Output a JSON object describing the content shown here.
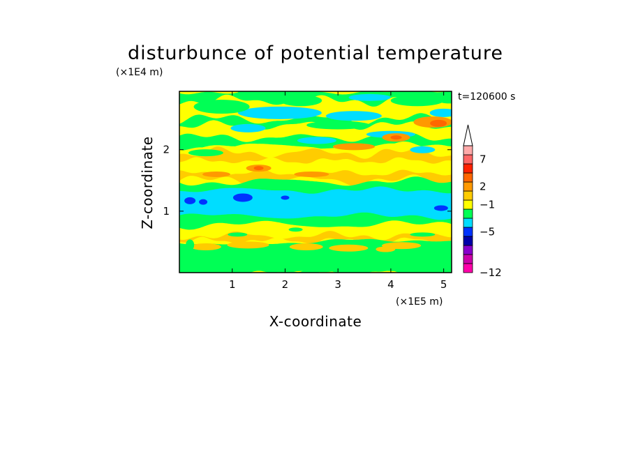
{
  "chart_data": {
    "type": "heatmap",
    "title": "disturbunce of potential temperature",
    "xlabel": "X-coordinate",
    "ylabel": "Z-coordinate",
    "x_unit": "(×1E5 m)",
    "y_unit": "(×1E4 m)",
    "time_label": "t=120600 s",
    "x_range": [
      0,
      5.15
    ],
    "y_range": [
      0,
      2.95
    ],
    "x_ticks": [
      "1",
      "2",
      "3",
      "4",
      "5"
    ],
    "y_ticks": [
      "1",
      "2"
    ],
    "colorbar": {
      "tick_labels": [
        "7",
        "2",
        "−1",
        "−5",
        "−12"
      ],
      "colors": [
        "#ff00aa",
        "#cc00aa",
        "#8800cc",
        "#0000aa",
        "#0033ff",
        "#00ddff",
        "#00ff55",
        "#ffff00",
        "#ffcc00",
        "#ff9900",
        "#ff6600",
        "#ff2200",
        "#ff6666",
        "#ffaaaa",
        "#ffffff"
      ],
      "extend": "max"
    },
    "band_layers": [
      {
        "z_range": [
          0.0,
          0.25
        ],
        "level": "yellow"
      },
      {
        "z_range": [
          0.25,
          0.55
        ],
        "level": "yellow-orange"
      },
      {
        "z_range": [
          0.55,
          0.8
        ],
        "level": "yellow"
      },
      {
        "z_range": [
          0.8,
          0.95
        ],
        "level": "green"
      },
      {
        "z_range": [
          0.95,
          1.3
        ],
        "level": "cyan"
      },
      {
        "z_range": [
          1.3,
          1.45
        ],
        "level": "green"
      },
      {
        "z_range": [
          1.45,
          2.05
        ],
        "level": "yellow-orange"
      },
      {
        "z_range": [
          2.05,
          2.45
        ],
        "level": "mixed green-cyan-yellow"
      },
      {
        "z_range": [
          2.45,
          2.95
        ],
        "level": "yellow-green"
      }
    ]
  }
}
